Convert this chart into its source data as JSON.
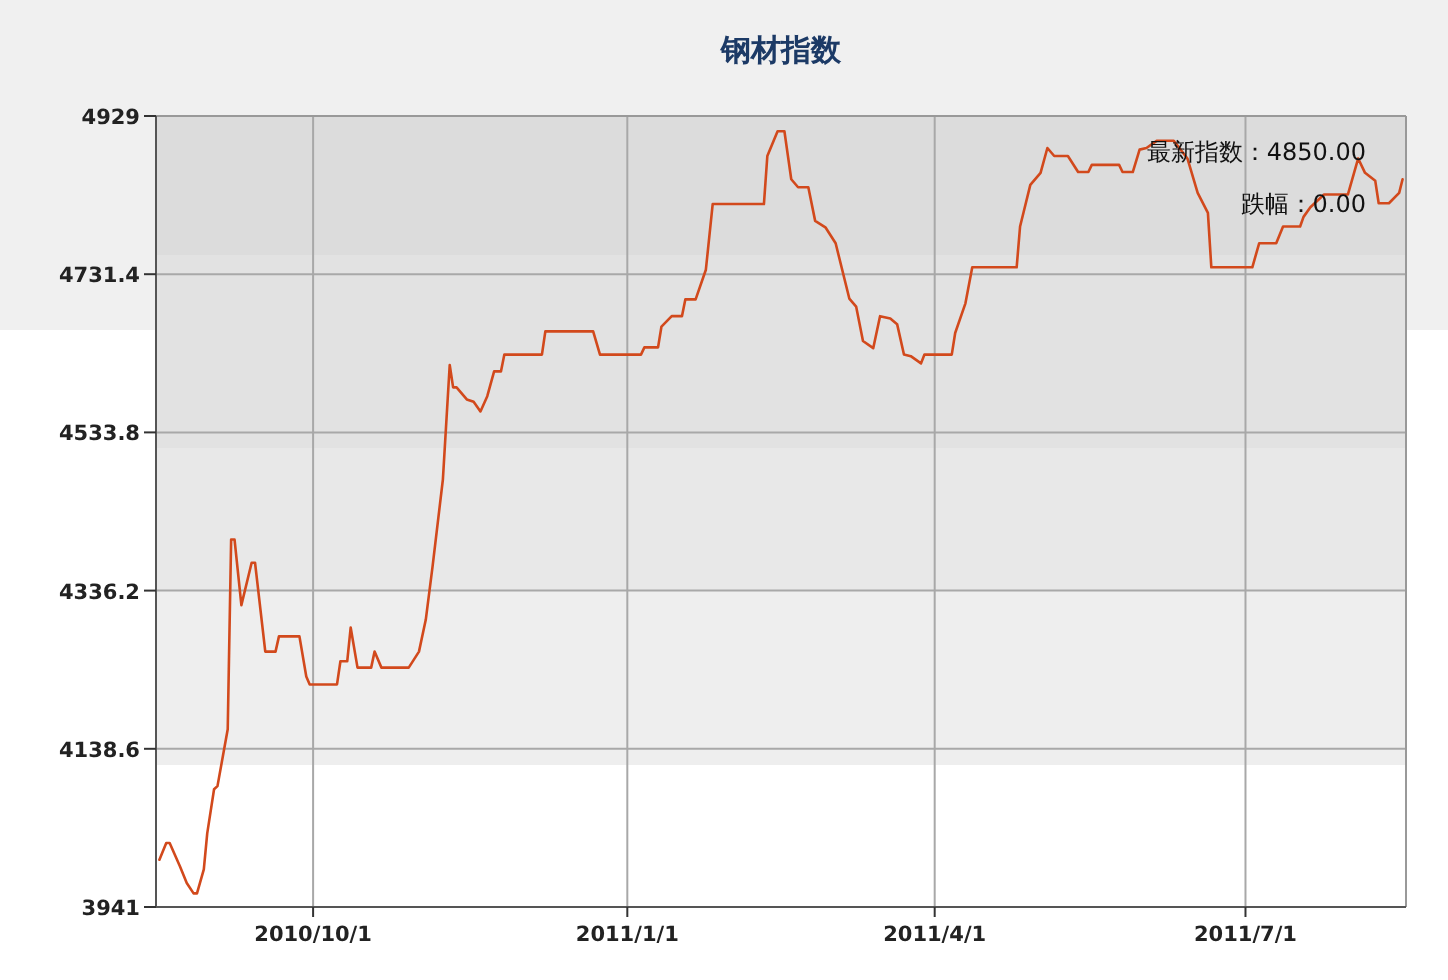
{
  "chart_data": {
    "type": "line",
    "title": "钢材指数",
    "x": [
      "2010-08-17",
      "2010-08-19",
      "2010-08-20",
      "2010-08-23",
      "2010-08-25",
      "2010-08-27",
      "2010-08-28",
      "2010-08-30",
      "2010-08-31",
      "2010-09-02",
      "2010-09-03",
      "2010-09-06",
      "2010-09-07",
      "2010-09-08",
      "2010-09-10",
      "2010-09-13",
      "2010-09-14",
      "2010-09-17",
      "2010-09-20",
      "2010-09-21",
      "2010-09-27",
      "2010-09-29",
      "2010-09-30",
      "2010-10-08",
      "2010-10-09",
      "2010-10-11",
      "2010-10-12",
      "2010-10-14",
      "2010-10-18",
      "2010-10-19",
      "2010-10-21",
      "2010-10-29",
      "2010-11-01",
      "2010-11-03",
      "2010-11-05",
      "2010-11-08",
      "2010-11-10",
      "2010-11-11",
      "2010-11-12",
      "2010-11-15",
      "2010-11-17",
      "2010-11-19",
      "2010-11-21",
      "2010-11-23",
      "2010-11-25",
      "2010-11-26",
      "2010-12-07",
      "2010-12-08",
      "2010-12-22",
      "2010-12-24",
      "2011-01-05",
      "2011-01-06",
      "2011-01-10",
      "2011-01-11",
      "2011-01-14",
      "2011-01-17",
      "2011-01-18",
      "2011-01-21",
      "2011-01-24",
      "2011-01-26",
      "2011-02-10",
      "2011-02-11",
      "2011-02-14",
      "2011-02-16",
      "2011-02-18",
      "2011-02-20",
      "2011-02-23",
      "2011-02-25",
      "2011-02-28",
      "2011-03-03",
      "2011-03-07",
      "2011-03-09",
      "2011-03-11",
      "2011-03-14",
      "2011-03-16",
      "2011-03-19",
      "2011-03-21",
      "2011-03-23",
      "2011-03-25",
      "2011-03-28",
      "2011-03-29",
      "2011-04-06",
      "2011-04-07",
      "2011-04-10",
      "2011-04-12",
      "2011-04-25",
      "2011-04-26",
      "2011-04-29",
      "2011-05-02",
      "2011-05-04",
      "2011-05-06",
      "2011-05-10",
      "2011-05-13",
      "2011-05-16",
      "2011-05-17",
      "2011-05-25",
      "2011-05-26",
      "2011-05-29",
      "2011-05-31",
      "2011-06-02",
      "2011-06-05",
      "2011-06-10",
      "2011-06-14",
      "2011-06-17",
      "2011-06-20",
      "2011-06-21",
      "2011-07-03",
      "2011-07-05",
      "2011-07-10",
      "2011-07-12",
      "2011-07-17",
      "2011-07-18",
      "2011-07-20",
      "2011-07-24",
      "2011-07-31",
      "2011-08-03",
      "2011-08-05",
      "2011-08-08",
      "2011-08-09",
      "2011-08-12",
      "2011-08-15",
      "2011-08-16"
    ],
    "series": [
      {
        "color": "#d2491c",
        "values": [
          4000,
          4021,
          4021,
          3992,
          3971,
          3958,
          3958,
          3988,
          4033,
          4088,
          4092,
          4163,
          4400,
          4400,
          4318,
          4371,
          4371,
          4260,
          4260,
          4279,
          4279,
          4229,
          4219,
          4219,
          4248,
          4248,
          4290,
          4240,
          4240,
          4260,
          4240,
          4240,
          4260,
          4300,
          4367,
          4475,
          4618,
          4590,
          4590,
          4575,
          4572,
          4560,
          4579,
          4610,
          4610,
          4631,
          4631,
          4660,
          4660,
          4631,
          4631,
          4640,
          4640,
          4666,
          4679,
          4679,
          4700,
          4700,
          4737,
          4819,
          4819,
          4879,
          4910,
          4910,
          4850,
          4840,
          4840,
          4798,
          4790,
          4770,
          4701,
          4691,
          4648,
          4639,
          4679,
          4676,
          4669,
          4631,
          4629,
          4620,
          4631,
          4631,
          4658,
          4695,
          4740,
          4740,
          4791,
          4843,
          4858,
          4889,
          4879,
          4879,
          4859,
          4859,
          4868,
          4868,
          4859,
          4859,
          4887,
          4889,
          4898,
          4898,
          4876,
          4833,
          4808,
          4740,
          4740,
          4770,
          4770,
          4791,
          4791,
          4803,
          4815,
          4831,
          4831,
          4876,
          4858,
          4848,
          4820,
          4820,
          4833,
          4850
        ]
      }
    ],
    "xlim": [
      "2010-08-16",
      "2011-08-17"
    ],
    "ylim": [
      3941,
      4929
    ],
    "xticks": [
      {
        "value": "2010-10-01",
        "label": "2010/10/1"
      },
      {
        "value": "2011-01-01",
        "label": "2011/1/1"
      },
      {
        "value": "2011-04-01",
        "label": "2011/4/1"
      },
      {
        "value": "2011-07-01",
        "label": "2011/7/1"
      }
    ],
    "yticks": [
      3941,
      4138.6,
      4336.2,
      4533.8,
      4731.4,
      4929
    ],
    "grid": true,
    "annotations": [
      "最新指数：4850.00",
      "跌幅：0.00"
    ]
  }
}
